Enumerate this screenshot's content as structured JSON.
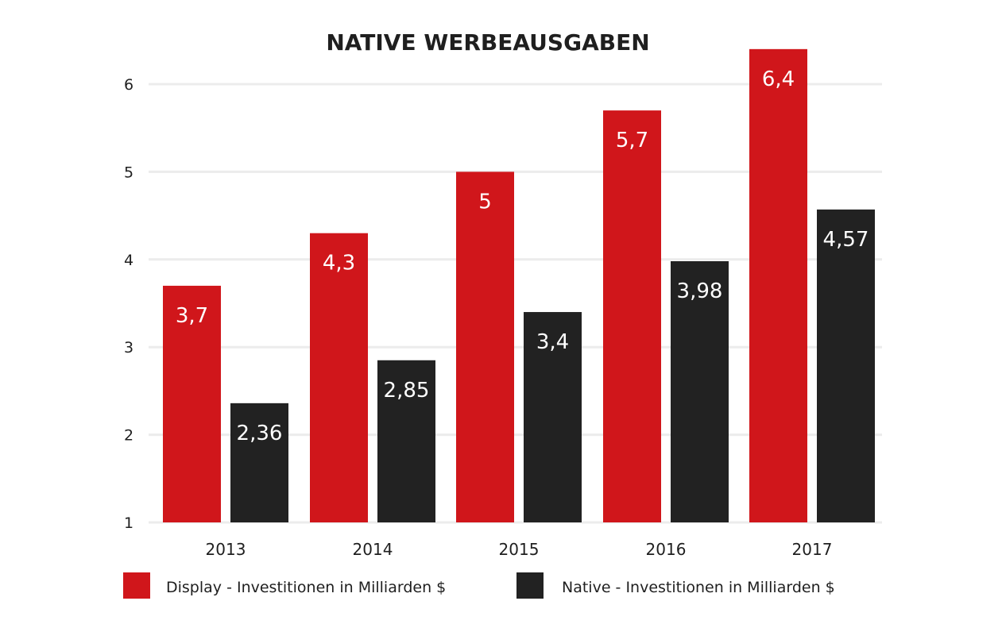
{
  "chart_data": {
    "type": "bar",
    "title": "NATIVE WERBEAUSGABEN",
    "xlabel": "",
    "ylabel": "",
    "categories": [
      "2013",
      "2014",
      "2015",
      "2016",
      "2017"
    ],
    "series": [
      {
        "name": "Display - Investitionen in Milliarden $",
        "values": [
          3.7,
          4.3,
          5,
          5.7,
          6.4
        ],
        "labels": [
          "3,7",
          "4,3",
          "5",
          "5,7",
          "6,4"
        ],
        "color": "#d0161b"
      },
      {
        "name": "Native - Investitionen in Milliarden $",
        "values": [
          2.36,
          2.85,
          3.4,
          3.98,
          4.57
        ],
        "labels": [
          "2,36",
          "2,85",
          "3,4",
          "3,98",
          "4,57"
        ],
        "color": "#222222"
      }
    ],
    "y_ticks": [
      "1",
      "2",
      "3",
      "4",
      "5",
      "6"
    ],
    "grid": true,
    "legend_position": "bottom"
  }
}
